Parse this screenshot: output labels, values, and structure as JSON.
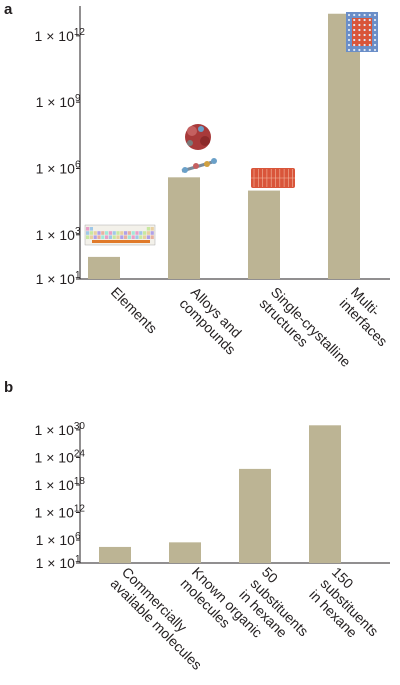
{
  "chart_data": [
    {
      "panel": "a",
      "type": "bar",
      "scale": "log10",
      "ylim_exponent": [
        1,
        13.35
      ],
      "yticks": [
        {
          "exp": 1,
          "label": "1 × 10",
          "sup": "1"
        },
        {
          "exp": 3,
          "label": "1 × 10",
          "sup": "3"
        },
        {
          "exp": 6,
          "label": "1 × 10",
          "sup": "6"
        },
        {
          "exp": 9,
          "label": "1 × 10",
          "sup": "9"
        },
        {
          "exp": 12,
          "label": "1 × 10",
          "sup": "12"
        }
      ],
      "categories": [
        [
          "Elements"
        ],
        [
          "Alloys and",
          "compounds"
        ],
        [
          "Single-crystalline",
          "structures"
        ],
        [
          "Multi-",
          "interfaces"
        ]
      ],
      "values_exponent": [
        2.0,
        5.6,
        5.0,
        13.0
      ],
      "bar_color": "#bcb494",
      "illustrations": [
        "periodic-table",
        "molecules",
        "crystal-slab",
        "interface-stack"
      ]
    },
    {
      "panel": "b",
      "type": "bar",
      "scale": "log10",
      "ylim_exponent": [
        1,
        31.5
      ],
      "yticks": [
        {
          "exp": 1,
          "label": "1 × 10",
          "sup": "1"
        },
        {
          "exp": 6,
          "label": "1 × 10",
          "sup": "6"
        },
        {
          "exp": 12,
          "label": "1 × 10",
          "sup": "12"
        },
        {
          "exp": 18,
          "label": "1 × 10",
          "sup": "18"
        },
        {
          "exp": 24,
          "label": "1 × 10",
          "sup": "24"
        },
        {
          "exp": 30,
          "label": "1 × 10",
          "sup": "30"
        }
      ],
      "categories": [
        [
          "Commercially",
          "available molecules"
        ],
        [
          "Known organic",
          "molecules"
        ],
        [
          "50",
          "substituents",
          "in hexane"
        ],
        [
          "150",
          "substituents",
          "in hexane"
        ]
      ],
      "values_exponent": [
        4.5,
        5.5,
        21.5,
        31.0
      ],
      "bar_color": "#bcb494"
    }
  ]
}
